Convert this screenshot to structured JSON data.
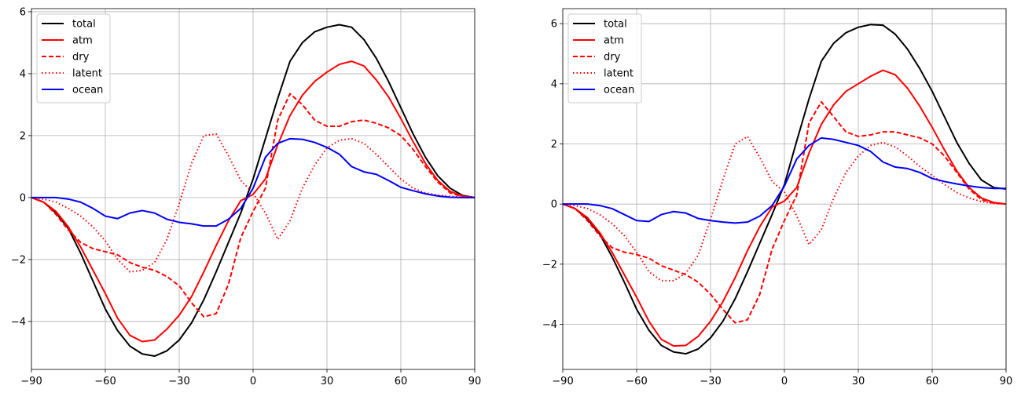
{
  "chart_data": [
    {
      "type": "line",
      "title": "",
      "xlabel": "",
      "ylabel": "",
      "xlim": [
        -90,
        90
      ],
      "ylim": [
        -5.55,
        6.1
      ],
      "grid": true,
      "legend_placement": "upper-left",
      "x_ticks": [
        {
          "value": -90,
          "label": "−90"
        },
        {
          "value": -60,
          "label": "−60"
        },
        {
          "value": -30,
          "label": "−30"
        },
        {
          "value": 0,
          "label": "0"
        },
        {
          "value": 30,
          "label": "30"
        },
        {
          "value": 60,
          "label": "60"
        },
        {
          "value": 90,
          "label": "90"
        }
      ],
      "y_ticks": [
        {
          "value": -4,
          "label": "−4"
        },
        {
          "value": -2,
          "label": "−2"
        },
        {
          "value": 0,
          "label": "0"
        },
        {
          "value": 2,
          "label": "2"
        },
        {
          "value": 4,
          "label": "4"
        },
        {
          "value": 6,
          "label": "6"
        }
      ],
      "x": [
        -90,
        -85,
        -80,
        -75,
        -70,
        -65,
        -60,
        -55,
        -50,
        -45,
        -40,
        -35,
        -30,
        -25,
        -20,
        -15,
        -10,
        -5,
        0,
        5,
        10,
        15,
        20,
        25,
        30,
        35,
        40,
        45,
        50,
        55,
        60,
        65,
        70,
        75,
        80,
        85,
        90
      ],
      "series": [
        {
          "name": "total",
          "color": "#000000",
          "dash": "solid",
          "values": [
            0,
            -0.15,
            -0.5,
            -1.0,
            -1.8,
            -2.7,
            -3.6,
            -4.3,
            -4.8,
            -5.05,
            -5.12,
            -4.95,
            -4.6,
            -4.05,
            -3.3,
            -2.4,
            -1.45,
            -0.5,
            0.6,
            1.9,
            3.2,
            4.4,
            5.0,
            5.35,
            5.5,
            5.58,
            5.5,
            5.1,
            4.5,
            3.75,
            2.9,
            2.05,
            1.3,
            0.7,
            0.3,
            0.07,
            0
          ]
        },
        {
          "name": "atm",
          "color": "#ff0000",
          "dash": "solid",
          "values": [
            0,
            -0.15,
            -0.45,
            -0.95,
            -1.6,
            -2.35,
            -3.1,
            -3.9,
            -4.45,
            -4.65,
            -4.6,
            -4.25,
            -3.8,
            -3.2,
            -2.4,
            -1.55,
            -0.75,
            -0.1,
            0.1,
            0.6,
            1.7,
            2.65,
            3.3,
            3.75,
            4.05,
            4.3,
            4.4,
            4.25,
            3.8,
            3.25,
            2.55,
            1.8,
            1.1,
            0.55,
            0.2,
            0.05,
            0
          ]
        },
        {
          "name": "dry",
          "color": "#ff0000",
          "dash": "dashed",
          "values": [
            0,
            -0.15,
            -0.55,
            -1.05,
            -1.45,
            -1.65,
            -1.75,
            -1.85,
            -2.1,
            -2.25,
            -2.35,
            -2.55,
            -2.85,
            -3.4,
            -3.85,
            -3.75,
            -2.8,
            -1.3,
            -0.45,
            0.3,
            2.5,
            3.35,
            3.0,
            2.5,
            2.3,
            2.3,
            2.45,
            2.5,
            2.4,
            2.25,
            2.0,
            1.55,
            1.0,
            0.5,
            0.15,
            0.03,
            0
          ]
        },
        {
          "name": "latent",
          "color": "#ff0000",
          "dash": "dotted",
          "values": [
            0,
            -0.05,
            -0.15,
            -0.35,
            -0.6,
            -0.95,
            -1.4,
            -2.0,
            -2.4,
            -2.35,
            -2.1,
            -1.35,
            -0.2,
            1.1,
            2.0,
            2.05,
            1.35,
            0.55,
            0.15,
            -0.5,
            -1.35,
            -0.75,
            0.3,
            1.05,
            1.6,
            1.85,
            1.9,
            1.75,
            1.4,
            1.0,
            0.6,
            0.3,
            0.15,
            0.08,
            0.04,
            0.01,
            0
          ]
        },
        {
          "name": "ocean",
          "color": "#0000ff",
          "dash": "solid",
          "values": [
            0,
            0,
            0,
            -0.05,
            -0.15,
            -0.35,
            -0.6,
            -0.68,
            -0.5,
            -0.42,
            -0.5,
            -0.7,
            -0.8,
            -0.85,
            -0.92,
            -0.92,
            -0.7,
            -0.35,
            0.3,
            1.3,
            1.75,
            1.9,
            1.88,
            1.78,
            1.62,
            1.4,
            1.0,
            0.83,
            0.75,
            0.55,
            0.33,
            0.22,
            0.12,
            0.05,
            0.01,
            0,
            0
          ]
        }
      ]
    },
    {
      "type": "line",
      "title": "",
      "xlabel": "",
      "ylabel": "",
      "xlim": [
        -90,
        90
      ],
      "ylim": [
        -5.5,
        6.5
      ],
      "grid": true,
      "legend_placement": "upper-left",
      "x_ticks": [
        {
          "value": -90,
          "label": "−90"
        },
        {
          "value": -60,
          "label": "−60"
        },
        {
          "value": -30,
          "label": "−30"
        },
        {
          "value": 0,
          "label": "0"
        },
        {
          "value": 30,
          "label": "30"
        },
        {
          "value": 60,
          "label": "60"
        },
        {
          "value": 90,
          "label": "90"
        }
      ],
      "y_ticks": [
        {
          "value": -4,
          "label": "−4"
        },
        {
          "value": -2,
          "label": "−2"
        },
        {
          "value": 0,
          "label": "0"
        },
        {
          "value": 2,
          "label": "2"
        },
        {
          "value": 4,
          "label": "4"
        },
        {
          "value": 6,
          "label": "6"
        }
      ],
      "x": [
        -90,
        -85,
        -80,
        -75,
        -70,
        -65,
        -60,
        -55,
        -50,
        -45,
        -40,
        -35,
        -30,
        -25,
        -20,
        -15,
        -10,
        -5,
        0,
        5,
        10,
        15,
        20,
        25,
        30,
        35,
        40,
        45,
        50,
        55,
        60,
        65,
        70,
        75,
        80,
        85,
        90
      ],
      "series": [
        {
          "name": "total",
          "color": "#000000",
          "dash": "solid",
          "values": [
            0,
            -0.15,
            -0.5,
            -1.0,
            -1.75,
            -2.6,
            -3.5,
            -4.2,
            -4.7,
            -4.92,
            -4.98,
            -4.82,
            -4.45,
            -3.9,
            -3.15,
            -2.25,
            -1.3,
            -0.35,
            0.65,
            2.1,
            3.5,
            4.75,
            5.35,
            5.7,
            5.88,
            5.97,
            5.95,
            5.65,
            5.15,
            4.5,
            3.75,
            2.9,
            2.05,
            1.35,
            0.8,
            0.55,
            0.5
          ]
        },
        {
          "name": "atm",
          "color": "#ff0000",
          "dash": "solid",
          "values": [
            0,
            -0.15,
            -0.45,
            -0.95,
            -1.6,
            -2.35,
            -3.1,
            -3.9,
            -4.5,
            -4.72,
            -4.7,
            -4.4,
            -3.9,
            -3.25,
            -2.45,
            -1.55,
            -0.75,
            -0.1,
            0.1,
            0.55,
            1.7,
            2.65,
            3.3,
            3.75,
            4.0,
            4.25,
            4.45,
            4.3,
            3.85,
            3.25,
            2.55,
            1.8,
            1.1,
            0.55,
            0.2,
            0.05,
            0
          ]
        },
        {
          "name": "dry",
          "color": "#ff0000",
          "dash": "dashed",
          "values": [
            0,
            -0.15,
            -0.55,
            -1.05,
            -1.45,
            -1.6,
            -1.68,
            -1.8,
            -2.05,
            -2.2,
            -2.35,
            -2.6,
            -3.0,
            -3.5,
            -3.95,
            -3.85,
            -3.0,
            -1.5,
            -0.55,
            0.3,
            2.7,
            3.4,
            2.9,
            2.4,
            2.25,
            2.3,
            2.4,
            2.4,
            2.3,
            2.2,
            2.0,
            1.6,
            1.05,
            0.5,
            0.15,
            0.03,
            0
          ]
        },
        {
          "name": "latent",
          "color": "#ff0000",
          "dash": "dotted",
          "values": [
            0,
            -0.05,
            -0.15,
            -0.35,
            -0.65,
            -1.05,
            -1.6,
            -2.25,
            -2.55,
            -2.55,
            -2.3,
            -1.7,
            -0.5,
            0.8,
            2.0,
            2.25,
            1.55,
            0.75,
            0.4,
            -0.4,
            -1.35,
            -0.85,
            0.2,
            1.05,
            1.6,
            1.95,
            2.05,
            1.9,
            1.6,
            1.25,
            0.95,
            0.65,
            0.38,
            0.2,
            0.08,
            0.02,
            0
          ]
        },
        {
          "name": "ocean",
          "color": "#0000ff",
          "dash": "solid",
          "values": [
            0,
            0,
            0,
            -0.05,
            -0.15,
            -0.35,
            -0.55,
            -0.58,
            -0.35,
            -0.25,
            -0.3,
            -0.48,
            -0.55,
            -0.6,
            -0.63,
            -0.6,
            -0.4,
            -0.05,
            0.6,
            1.5,
            1.95,
            2.2,
            2.15,
            2.05,
            1.95,
            1.75,
            1.4,
            1.23,
            1.18,
            1.05,
            0.85,
            0.75,
            0.67,
            0.6,
            0.55,
            0.52,
            0.52
          ]
        }
      ]
    }
  ]
}
